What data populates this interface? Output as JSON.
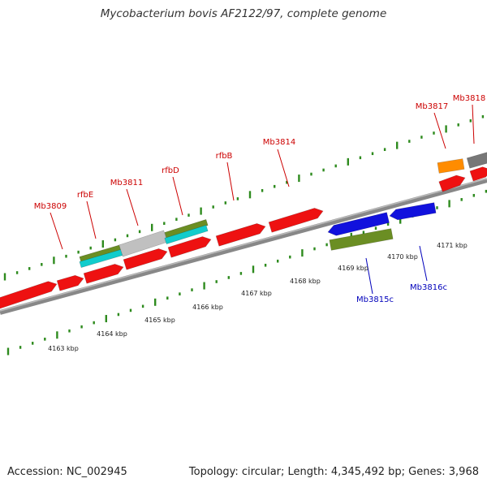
{
  "title": "Mycobacterium bovis AF2122/97, complete genome",
  "footer": {
    "accession": "Accession: NC_002945",
    "summary": "Topology: circular; Length: 4,345,492 bp; Genes: 3,968"
  },
  "colors": {
    "backbone": "#888888",
    "tick": "#2e8b1e",
    "forward_gene": "#ee1111",
    "reverse_gene": "#1111dd",
    "forward_label": "#cc0000",
    "reverse_label": "#0000bb",
    "cds_olive": "#6b8e23",
    "cds_cyan": "#11cccc",
    "cds_gray": "#c0c0c0",
    "cds_orange": "#ff8c00",
    "cds_darkgray": "#777777",
    "kbp_label": "#222222"
  },
  "scale_labels": [
    "4163 kbp",
    "4164 kbp",
    "4165 kbp",
    "4166 kbp",
    "4167 kbp",
    "4168 kbp",
    "4169 kbp",
    "4170 kbp",
    "4171 kbp"
  ],
  "forward_labels": [
    "Mb3809",
    "rfbE",
    "Mb3811",
    "rfbD",
    "rfbB",
    "Mb3814",
    "Mb3817",
    "Mb3818"
  ],
  "reverse_labels": [
    "Mb3815c",
    "Mb3816c"
  ]
}
